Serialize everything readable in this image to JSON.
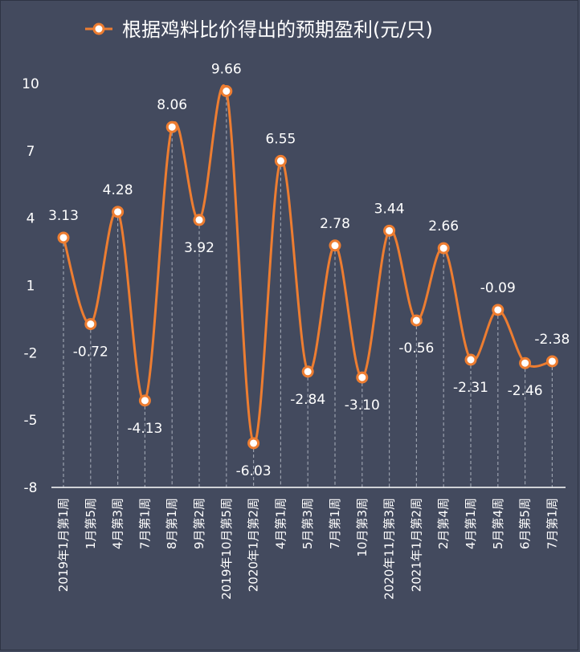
{
  "chart_data": {
    "type": "line",
    "title": "根据鸡料比价得出的预期盈利(元/只)",
    "legend": [
      "根据鸡料比价得出的预期盈利(元/只)"
    ],
    "legend_position": "top",
    "smooth": true,
    "categories": [
      "2019年1月第1周",
      "1月第5周",
      "4月第3周",
      "7月第1周",
      "8月第1周",
      "9月第2周",
      "2019年10月第5周",
      "2020年1月第2周",
      "4月第1周",
      "5月第3周",
      "7月第1周",
      "10月第3周",
      "2020年11月第3周",
      "2021年1月第2周",
      "2月第4周",
      "4月第1周",
      "5月第4周",
      "6月第5周",
      "7月第1周"
    ],
    "series": [
      {
        "name": "根据鸡料比价得出的预期盈利(元/只)",
        "values": [
          3.13,
          -0.72,
          4.28,
          -4.13,
          8.06,
          3.92,
          9.66,
          -6.03,
          6.55,
          -2.84,
          2.78,
          -3.1,
          3.44,
          -0.56,
          2.66,
          -2.31,
          -0.09,
          -2.46,
          -2.38
        ],
        "labels": [
          "3.13",
          "-0.72",
          "4.28",
          "-4.13",
          "8.06",
          "3.92",
          "9.66",
          "-6.03",
          "6.55",
          "-2.84",
          "2.78",
          "-3.10",
          "3.44",
          "-0.56",
          "2.66",
          "-2.31",
          "-0.09",
          "-2.46",
          "-2.38"
        ],
        "label_positions": [
          "above",
          "below",
          "above",
          "below",
          "above",
          "below",
          "above",
          "below",
          "above",
          "below",
          "above",
          "below",
          "above",
          "below",
          "above",
          "below",
          "above",
          "below",
          "above"
        ]
      }
    ],
    "y_ticks": [
      "10",
      "7",
      "4",
      "1",
      "-2",
      "-5",
      "-8"
    ],
    "ylim": [
      -8,
      10
    ],
    "grid": false,
    "colors": {
      "line": "#ed7d31",
      "marker_fill": "#ffffff",
      "background": "#434a5e",
      "text": "#ffffff",
      "drop_lines": "#9aa0ad",
      "axis": "#ffffff"
    }
  }
}
